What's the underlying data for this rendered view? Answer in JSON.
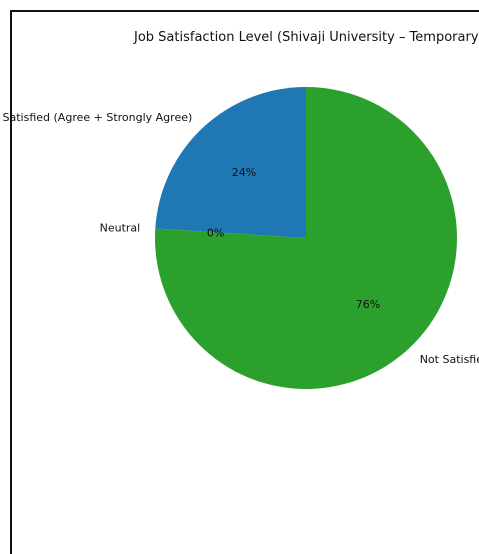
{
  "chart_data": {
    "type": "pie",
    "title": "Job Satisfaction Level (Shivaji University – Temporary",
    "slices": [
      {
        "label": "Satisfied (Agree + Strongly Agree)",
        "value": 24,
        "pct_label": "24%",
        "color": "#1f77b4"
      },
      {
        "label": "Neutral",
        "value": 0,
        "pct_label": "0%",
        "color": "#ff7f0e"
      },
      {
        "label": "Not Satisfied (D",
        "value": 76,
        "pct_label": "76%",
        "color": "#2ca02c"
      }
    ],
    "start_angle_deg": 90,
    "direction": "counterclockwise"
  }
}
